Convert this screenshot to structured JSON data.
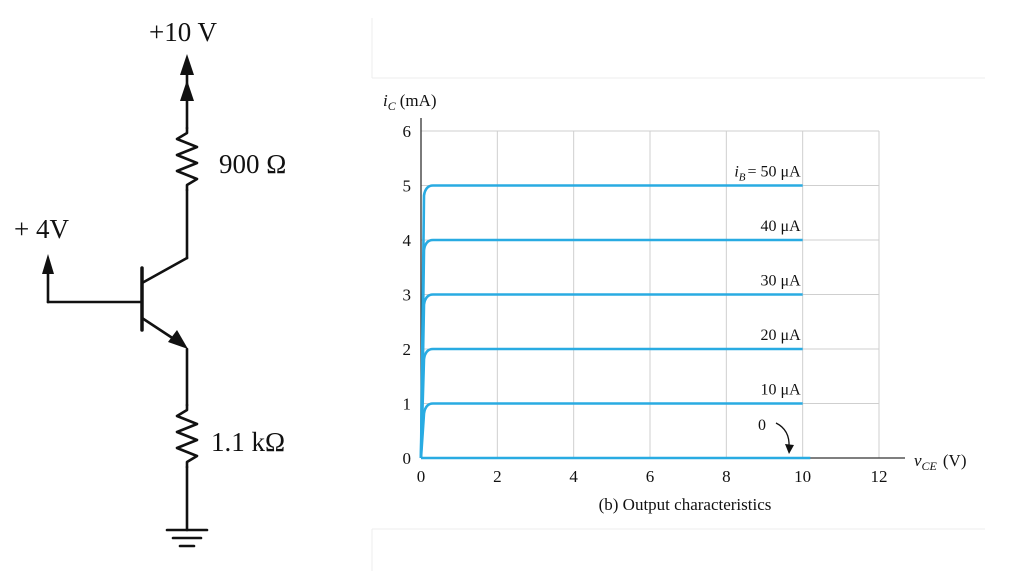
{
  "circuit": {
    "supply_label": "+10 V",
    "collector_resistor_label": "900 Ω",
    "base_voltage_label": "+ 4V",
    "emitter_resistor_label": "1.1 kΩ"
  },
  "chart_data": {
    "type": "line",
    "title": "(b) Output characteristics",
    "ylabel": "i_C (mA)",
    "ylabel_main": "i",
    "ylabel_sub": "C",
    "ylabel_unit": "(mA)",
    "xlabel": "v_CE (V)",
    "xlabel_main": "v",
    "xlabel_sub": "CE",
    "xlabel_unit": "(V)",
    "xlim": [
      0,
      12
    ],
    "ylim": [
      0,
      6
    ],
    "xticks": [
      0,
      2,
      4,
      6,
      8,
      10,
      12
    ],
    "yticks": [
      0,
      1,
      2,
      3,
      4,
      5,
      6
    ],
    "grid": true,
    "line_color": "#29abe2",
    "series_label_prefix": "i",
    "series_label_sub": "B",
    "series_label_eq": "= ",
    "series": [
      {
        "name": "50 μA",
        "label": "50 μA",
        "ic_mA": 5,
        "x_end": 10
      },
      {
        "name": "40 μA",
        "label": "40 μA",
        "ic_mA": 4,
        "x_end": 10
      },
      {
        "name": "30 μA",
        "label": "30 μA",
        "ic_mA": 3,
        "x_end": 10
      },
      {
        "name": "20 μA",
        "label": "20 μA",
        "ic_mA": 2,
        "x_end": 10
      },
      {
        "name": "10 μA",
        "label": "10 μA",
        "ic_mA": 1,
        "x_end": 10
      },
      {
        "name": "0",
        "label": "0",
        "ic_mA": 0,
        "x_end": 10.2
      }
    ]
  }
}
